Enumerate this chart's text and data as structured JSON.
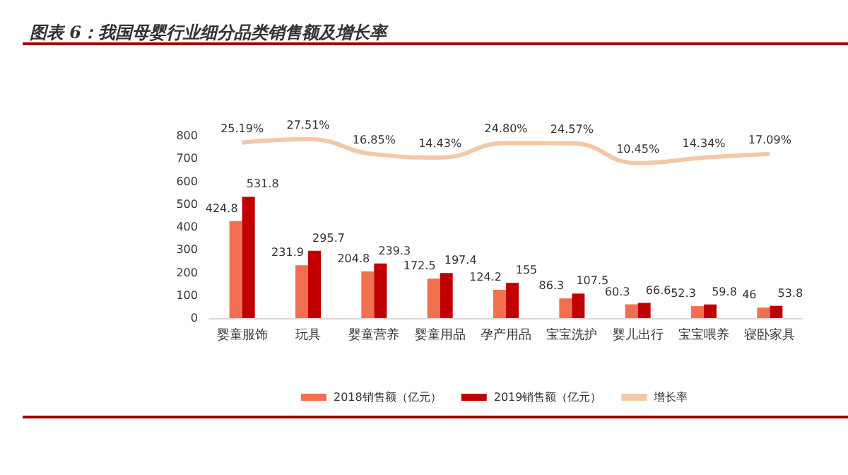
{
  "chart_data": {
    "type": "bar",
    "title": "图表 6：我国母婴行业细分品类销售额及增长率",
    "categories": [
      "婴童服饰",
      "玩具",
      "婴童营养",
      "婴童用品",
      "孕产用品",
      "宝宝洗护",
      "婴儿出行",
      "宝宝喂养",
      "寝卧家具"
    ],
    "series": [
      {
        "name": "2018销售额（亿元）",
        "color": "#f07050",
        "values": [
          424.8,
          231.9,
          204.8,
          172.5,
          124.2,
          86.3,
          60.3,
          52.3,
          46.0
        ]
      },
      {
        "name": "2019销售额（亿元）",
        "color": "#c00000",
        "values": [
          531.8,
          295.7,
          239.3,
          197.4,
          155,
          107.5,
          66.6,
          59.8,
          53.8
        ]
      },
      {
        "name": "增长率",
        "type": "line",
        "axis": "y2",
        "color": "#f3c8a8",
        "values": [
          25.19,
          27.51,
          16.85,
          14.43,
          24.8,
          24.57,
          10.45,
          14.34,
          17.09
        ],
        "value_labels": [
          "25.19%",
          "27.51%",
          "16.85%",
          "14.43%",
          "24.80%",
          "24.57%",
          "10.45%",
          "14.34%",
          "17.09%"
        ]
      }
    ],
    "ylim": [
      0,
      800
    ],
    "yticks": [
      0,
      100,
      200,
      300,
      400,
      500,
      600,
      700,
      800
    ],
    "tick_labels": "x y",
    "data_labels": true,
    "grid": false,
    "legend": "bottom",
    "marker": "none"
  }
}
